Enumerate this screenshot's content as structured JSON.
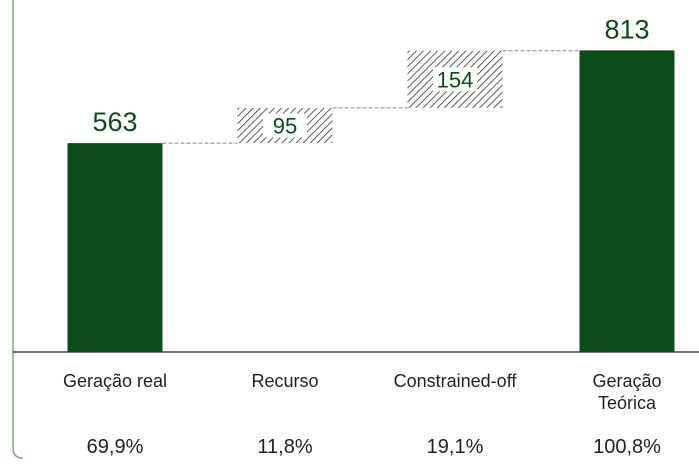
{
  "chart_data": {
    "type": "waterfall",
    "categories": [
      "Geração real",
      "Recurso",
      "Constrained-off",
      "Geração Teórica"
    ],
    "values": [
      563,
      95,
      154,
      813
    ],
    "percentages": [
      "69,9%",
      "11,8%",
      "19,1%",
      "100,8%"
    ],
    "color": "#0b4d1a"
  }
}
